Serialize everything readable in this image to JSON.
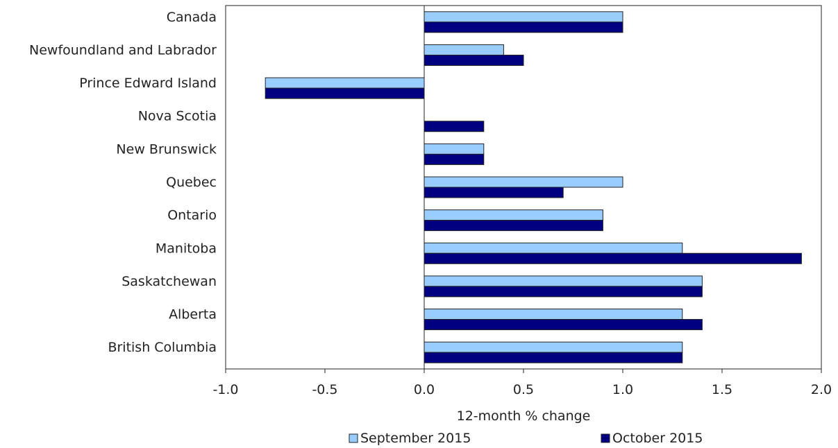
{
  "chart_data": {
    "type": "bar",
    "orientation": "horizontal",
    "categories": [
      "Canada",
      "Newfoundland and Labrador",
      "Prince Edward Island",
      "Nova Scotia",
      "New Brunswick",
      "Quebec",
      "Ontario",
      "Manitoba",
      "Saskatchewan",
      "Alberta",
      "British Columbia"
    ],
    "series": [
      {
        "name": "September 2015",
        "color": "#99ccff",
        "values": [
          1.0,
          0.4,
          -0.8,
          0.0,
          0.3,
          1.0,
          0.9,
          1.3,
          1.4,
          1.3,
          1.3
        ]
      },
      {
        "name": "October 2015",
        "color": "#000080",
        "values": [
          1.0,
          0.5,
          -0.8,
          0.3,
          0.3,
          0.7,
          0.9,
          1.9,
          1.4,
          1.4,
          1.3
        ]
      }
    ],
    "xlabel": "12-month % change",
    "xlim": [
      -1.0,
      2.0
    ],
    "xticks": [
      "-1.0",
      "-0.5",
      "0.0",
      "0.5",
      "1.0",
      "1.5",
      "2.0"
    ],
    "grid": false,
    "legend_position": "bottom"
  }
}
